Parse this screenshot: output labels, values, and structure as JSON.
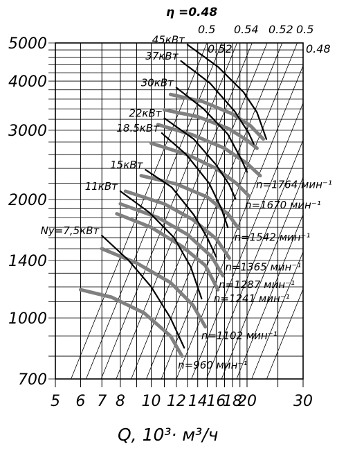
{
  "chart_data": {
    "type": "line",
    "xlabel": "Q, 10³· м³/ч",
    "ylabel": "",
    "x_scale": "log",
    "y_scale": "log",
    "xlim": [
      5,
      30
    ],
    "ylim": [
      700,
      5000
    ],
    "x_ticks": [
      5,
      6,
      7,
      8,
      10,
      12,
      14,
      16,
      18,
      20,
      30
    ],
    "x_tick_labels": [
      "5",
      "6",
      "7",
      "8",
      "10",
      "12",
      "14",
      "16",
      "18",
      "20",
      "30"
    ],
    "y_ticks": [
      700,
      1000,
      1400,
      2000,
      3000,
      4000,
      5000
    ],
    "y_tick_labels": [
      "700",
      "1000",
      "1400",
      "2000",
      "3000",
      "4000",
      "5000"
    ],
    "grid": true,
    "efficiency": {
      "title": "η =0.48",
      "labels": [
        "0.5",
        "0.52",
        "0.54",
        "0.52",
        "0.5",
        "0.48"
      ]
    },
    "power_curves": [
      {
        "label": "Ny=7,5кВт",
        "points": [
          [
            7.0,
            1620
          ],
          [
            8.5,
            1400
          ],
          [
            10.0,
            1200
          ],
          [
            11.5,
            1000
          ],
          [
            12.7,
            840
          ]
        ]
      },
      {
        "label": "11кВт",
        "points": [
          [
            8.0,
            2100
          ],
          [
            9.9,
            1850
          ],
          [
            11.8,
            1600
          ],
          [
            13.3,
            1350
          ],
          [
            14.4,
            1120
          ]
        ]
      },
      {
        "label": "15кВт",
        "points": [
          [
            9.6,
            2380
          ],
          [
            11.6,
            2150
          ],
          [
            13.6,
            1830
          ],
          [
            15.0,
            1600
          ],
          [
            16.0,
            1430
          ]
        ]
      },
      {
        "label": "18.5кВт",
        "points": [
          [
            10.8,
            2950
          ],
          [
            12.9,
            2600
          ],
          [
            15.2,
            2200
          ],
          [
            16.6,
            1900
          ],
          [
            17.4,
            1700
          ]
        ]
      },
      {
        "label": "22кВт",
        "points": [
          [
            11.0,
            3220
          ],
          [
            13.6,
            2850
          ],
          [
            16.0,
            2450
          ],
          [
            17.6,
            2180
          ],
          [
            18.4,
            2010
          ]
        ]
      },
      {
        "label": "30кВт",
        "points": [
          [
            12.0,
            3850
          ],
          [
            14.6,
            3400
          ],
          [
            17.4,
            2930
          ],
          [
            19.2,
            2530
          ],
          [
            20.0,
            2350
          ]
        ]
      },
      {
        "label": "37кВт",
        "points": [
          [
            12.4,
            4500
          ],
          [
            15.3,
            3950
          ],
          [
            18.3,
            3350
          ],
          [
            20.2,
            2960
          ],
          [
            21.0,
            2770
          ]
        ]
      },
      {
        "label": "45кВт",
        "points": [
          [
            13.0,
            4950
          ],
          [
            16.2,
            4350
          ],
          [
            19.5,
            3750
          ],
          [
            21.5,
            3330
          ],
          [
            23.0,
            2850
          ]
        ]
      }
    ],
    "speed_curves": [
      {
        "label": "n=960 мин⁻¹",
        "points": [
          [
            6.0,
            1180
          ],
          [
            7.5,
            1130
          ],
          [
            9.5,
            1030
          ],
          [
            11.5,
            900
          ],
          [
            12.5,
            800
          ]
        ]
      },
      {
        "label": "n=1102 мин⁻¹",
        "points": [
          [
            7.0,
            1500
          ],
          [
            9.0,
            1380
          ],
          [
            11.5,
            1230
          ],
          [
            13.5,
            1080
          ],
          [
            14.8,
            950
          ]
        ]
      },
      {
        "label": "n=1241 мин⁻¹",
        "points": [
          [
            7.8,
            1840
          ],
          [
            10.0,
            1700
          ],
          [
            12.5,
            1520
          ],
          [
            14.8,
            1360
          ],
          [
            16.2,
            1180
          ]
        ]
      },
      {
        "label": "n=1287 мин⁻¹",
        "points": [
          [
            8.0,
            1950
          ],
          [
            10.5,
            1800
          ],
          [
            13.0,
            1630
          ],
          [
            15.5,
            1430
          ],
          [
            16.8,
            1280
          ]
        ]
      },
      {
        "label": "n=1365 мин⁻¹",
        "points": [
          [
            8.3,
            2100
          ],
          [
            11.0,
            1950
          ],
          [
            13.5,
            1780
          ],
          [
            16.0,
            1590
          ],
          [
            17.6,
            1420
          ]
        ]
      },
      {
        "label": "n=1542 мин⁻¹",
        "points": [
          [
            9.3,
            2300
          ],
          [
            12.0,
            2190
          ],
          [
            15.0,
            2030
          ],
          [
            17.5,
            1830
          ],
          [
            18.8,
            1690
          ]
        ]
      },
      {
        "label": "n=1670 мин⁻¹",
        "points": [
          [
            10.0,
            2780
          ],
          [
            13.0,
            2600
          ],
          [
            16.0,
            2400
          ],
          [
            18.5,
            2200
          ],
          [
            20.3,
            2040
          ]
        ]
      },
      {
        "label": "n=1764 мин⁻¹",
        "points": [
          [
            10.5,
            3100
          ],
          [
            13.5,
            2920
          ],
          [
            17.0,
            2700
          ],
          [
            20.0,
            2470
          ],
          [
            22.0,
            2300
          ]
        ]
      },
      {
        "label": "",
        "points": [
          [
            11.0,
            3380
          ],
          [
            14.0,
            3250
          ],
          [
            17.5,
            3030
          ],
          [
            20.0,
            2830
          ],
          [
            21.5,
            2700
          ]
        ]
      },
      {
        "label": "",
        "points": [
          [
            11.5,
            3700
          ],
          [
            14.5,
            3550
          ],
          [
            18.0,
            3300
          ],
          [
            20.5,
            3080
          ],
          [
            22.5,
            2850
          ]
        ]
      }
    ],
    "diagonal_lines": {
      "count": 14,
      "slope_decades_per_decade": 2.0
    },
    "colors": {
      "power": "#000000",
      "speed": "#808080",
      "grid": "#000000"
    }
  }
}
